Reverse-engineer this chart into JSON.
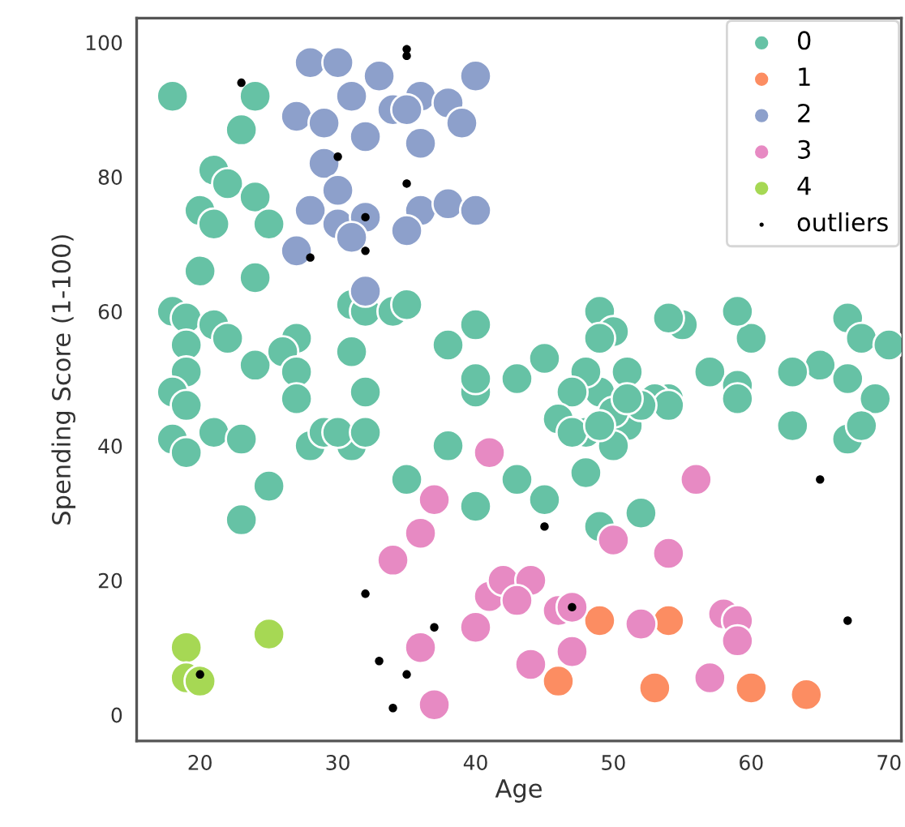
{
  "chart_data": {
    "type": "scatter",
    "xlabel": "Age",
    "ylabel": "Spending Score (1-100)",
    "xlim": [
      15.4,
      70.9
    ],
    "ylim": [
      -3.9,
      103.6
    ],
    "xticks": [
      20,
      30,
      40,
      50,
      60,
      70
    ],
    "yticks": [
      0,
      20,
      40,
      60,
      80,
      100
    ],
    "grid": false,
    "legend": "top right",
    "marker": "circle",
    "series": [
      {
        "name": "0",
        "color": "#66c2a5",
        "x": [
          18,
          24,
          23,
          21,
          22,
          24,
          20,
          21,
          25,
          20,
          24,
          18,
          19,
          21,
          22,
          19,
          24,
          27,
          26,
          27,
          31,
          19,
          18,
          19,
          32,
          31,
          32,
          34,
          35,
          40,
          38,
          40,
          40,
          43,
          45,
          49,
          50,
          49,
          55,
          54,
          51,
          49,
          48,
          47,
          54,
          53,
          60,
          57,
          59,
          59,
          67,
          68,
          70,
          65,
          63,
          67,
          69,
          18,
          19,
          21,
          23,
          27,
          28,
          29,
          31,
          30,
          32,
          25,
          23,
          35,
          38,
          40,
          43,
          45,
          48,
          49,
          52,
          63,
          67,
          68,
          48,
          51,
          54,
          59,
          46,
          47,
          50,
          50,
          49,
          52,
          51
        ],
        "values": [
          92,
          92,
          87,
          81,
          79,
          77,
          75,
          73,
          73,
          66,
          65,
          60,
          59,
          58,
          56,
          55,
          52,
          56,
          54,
          51,
          54,
          51,
          48,
          46,
          48,
          61,
          60,
          60,
          61,
          58,
          55,
          48,
          50,
          50,
          53,
          60,
          57,
          56,
          58,
          59,
          51,
          48,
          51,
          48,
          47,
          47,
          56,
          51,
          49,
          60,
          59,
          56,
          55,
          52,
          51,
          50,
          47,
          41,
          39,
          42,
          41,
          47,
          40,
          42,
          40,
          42,
          42,
          34,
          29,
          35,
          40,
          31,
          35,
          32,
          36,
          28,
          30,
          43,
          41,
          43,
          42,
          43,
          46,
          47,
          44,
          42,
          45,
          40,
          43,
          46,
          47
        ]
      },
      {
        "name": "1",
        "color": "#fc8d62",
        "x": [
          49,
          54,
          46,
          53,
          60,
          64
        ],
        "values": [
          14,
          14,
          5,
          4,
          4,
          3
        ]
      },
      {
        "name": "2",
        "color": "#8da0cb",
        "x": [
          28,
          30,
          33,
          31,
          36,
          40,
          27,
          29,
          34,
          35,
          38,
          39,
          32,
          36,
          29,
          30,
          28,
          30,
          32,
          31,
          36,
          38,
          35,
          27,
          32,
          40
        ],
        "values": [
          97,
          97,
          95,
          92,
          92,
          95,
          89,
          88,
          90,
          90,
          91,
          88,
          86,
          85,
          82,
          78,
          75,
          73,
          74,
          71,
          75,
          76,
          72,
          69,
          63,
          75
        ]
      },
      {
        "name": "3",
        "color": "#e78ac3",
        "x": [
          41,
          37,
          36,
          34,
          36,
          37,
          40,
          41,
          56,
          50,
          54,
          42,
          44,
          43,
          46,
          47,
          52,
          58,
          59,
          59,
          44,
          47,
          57
        ],
        "values": [
          39,
          32,
          27,
          23,
          10,
          1.5,
          13,
          17.6,
          35,
          26,
          24,
          20,
          20,
          17,
          15.5,
          16,
          13.5,
          15,
          14,
          11,
          7.5,
          9.4,
          5.5
        ]
      },
      {
        "name": "4",
        "color": "#a6d854",
        "x": [
          19,
          19,
          20,
          25
        ],
        "values": [
          10,
          5.5,
          5,
          12
        ]
      },
      {
        "name": "outliers",
        "color": "#000000",
        "x": [
          23,
          35,
          35,
          30,
          35,
          32,
          32,
          28,
          20,
          32,
          37,
          33,
          35,
          34,
          45,
          65,
          47,
          67
        ],
        "values": [
          94,
          99,
          98,
          83,
          79,
          74,
          69,
          68,
          6,
          18,
          13,
          8,
          6,
          1,
          28,
          35,
          16,
          14
        ]
      }
    ]
  }
}
